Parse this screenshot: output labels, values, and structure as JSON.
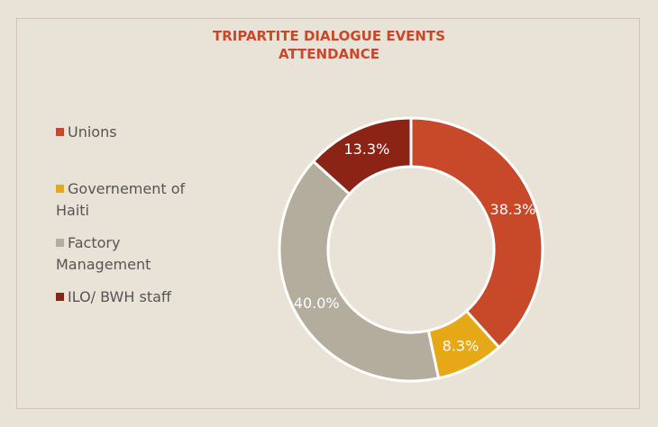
{
  "chart_data": {
    "type": "donut",
    "title": "TRIPARTITE DIALOGUE EVENTS ATTENDANCE",
    "categories": [
      "Unions",
      "Governement of Haiti",
      "Factory Management",
      "ILO/ BWH staff"
    ],
    "values": [
      38.3,
      8.3,
      40.0,
      13.3
    ],
    "value_labels": [
      "38.3%",
      "8.3%",
      "40.0%",
      "13.3%"
    ],
    "colors": [
      "#c8482a",
      "#e6a817",
      "#b4ad9d",
      "#8c2416"
    ],
    "legend": "left"
  }
}
